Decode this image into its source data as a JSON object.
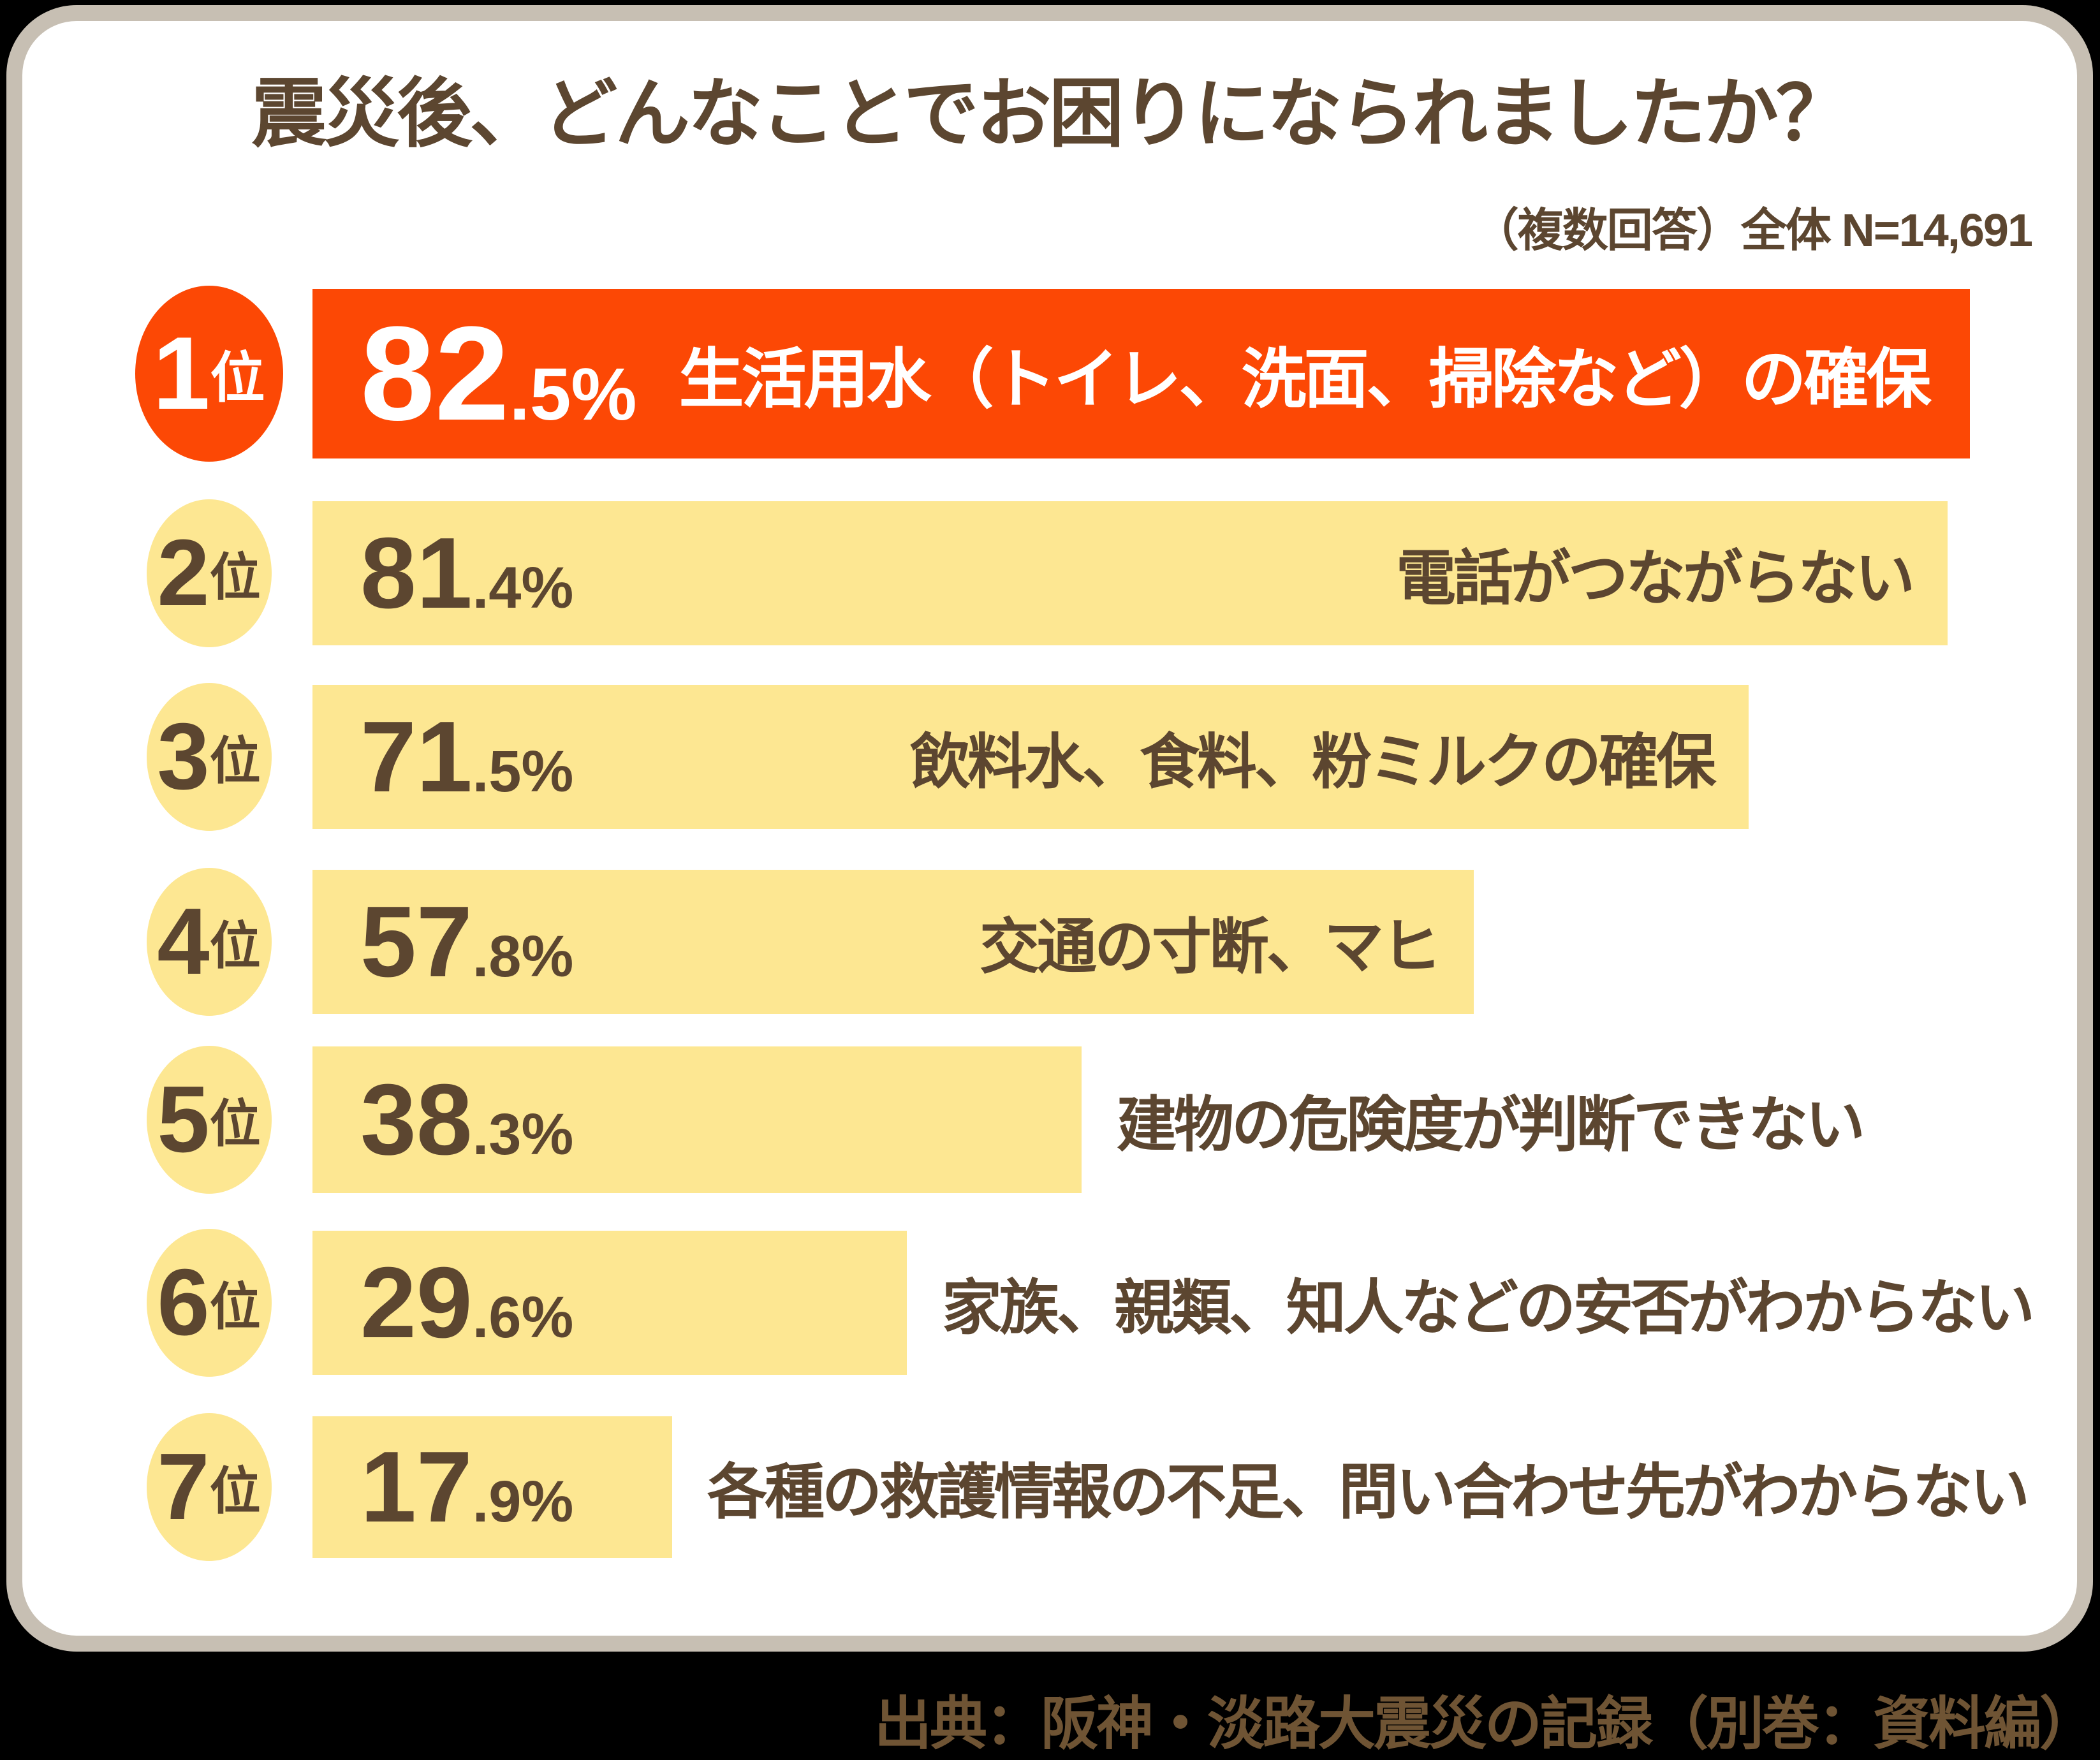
{
  "title": "震災後、どんなことでお困りになられましたか？",
  "note": "（複数回答）全体 N=14,691",
  "source": "出典：阪神・淡路大震災の記録（別巻：資料編）",
  "colors": {
    "highlight_bar": "#fc4805",
    "bar": "#fde792",
    "text_brown": "#5c4630",
    "source_brown": "#6f5434",
    "frame_border": "#c7bfb3",
    "card_background": "#ffffff"
  },
  "chart_data": {
    "type": "bar",
    "orientation": "horizontal",
    "title": "震災後、どんなことでお困りになられましたか？",
    "subtitle": "（複数回答）全体 N=14,691",
    "sample_size": "N=14,691",
    "categories": [
      "生活用水（トイレ、洗面、掃除など）の確保",
      "電話がつながらない",
      "飲料水、食料、粉ミルクの確保",
      "交通の寸断、マヒ",
      "建物の危険度が判断できない",
      "家族、親類、知人などの安否がわからない",
      "各種の救護情報の不足、問い合わせ先がわからない"
    ],
    "values": [
      82.5,
      81.4,
      71.5,
      57.8,
      38.3,
      29.6,
      17.9
    ],
    "ranks": [
      "1位",
      "2位",
      "3位",
      "4位",
      "5位",
      "6位",
      "7位"
    ],
    "unit": "%",
    "xlim": [
      0,
      82.5
    ],
    "grid": false,
    "legend": false,
    "source": "出典：阪神・淡路大震災の記録（別巻：資料編）"
  },
  "rows": [
    {
      "rank_num": "1",
      "rank_suffix": "位",
      "value": 82.5,
      "value_int": "82",
      "value_frac": ".5%",
      "label": "生活用水（トイレ、洗面、掃除など）の確保"
    },
    {
      "rank_num": "2",
      "rank_suffix": "位",
      "value": 81.4,
      "value_int": "81",
      "value_frac": ".4%",
      "label": "電話がつながらない"
    },
    {
      "rank_num": "3",
      "rank_suffix": "位",
      "value": 71.5,
      "value_int": "71",
      "value_frac": ".5%",
      "label": "飲料水、食料、粉ミルクの確保"
    },
    {
      "rank_num": "4",
      "rank_suffix": "位",
      "value": 57.8,
      "value_int": "57",
      "value_frac": ".8%",
      "label": "交通の寸断、マヒ"
    },
    {
      "rank_num": "5",
      "rank_suffix": "位",
      "value": 38.3,
      "value_int": "38",
      "value_frac": ".3%",
      "label": "建物の危険度が判断できない"
    },
    {
      "rank_num": "6",
      "rank_suffix": "位",
      "value": 29.6,
      "value_int": "29",
      "value_frac": ".6%",
      "label": "家族、親類、知人などの安否がわからない"
    },
    {
      "rank_num": "7",
      "rank_suffix": "位",
      "value": 17.9,
      "value_int": "17",
      "value_frac": ".9%",
      "label": "各種の救護情報の不足、問い合わせ先がわからない"
    }
  ]
}
